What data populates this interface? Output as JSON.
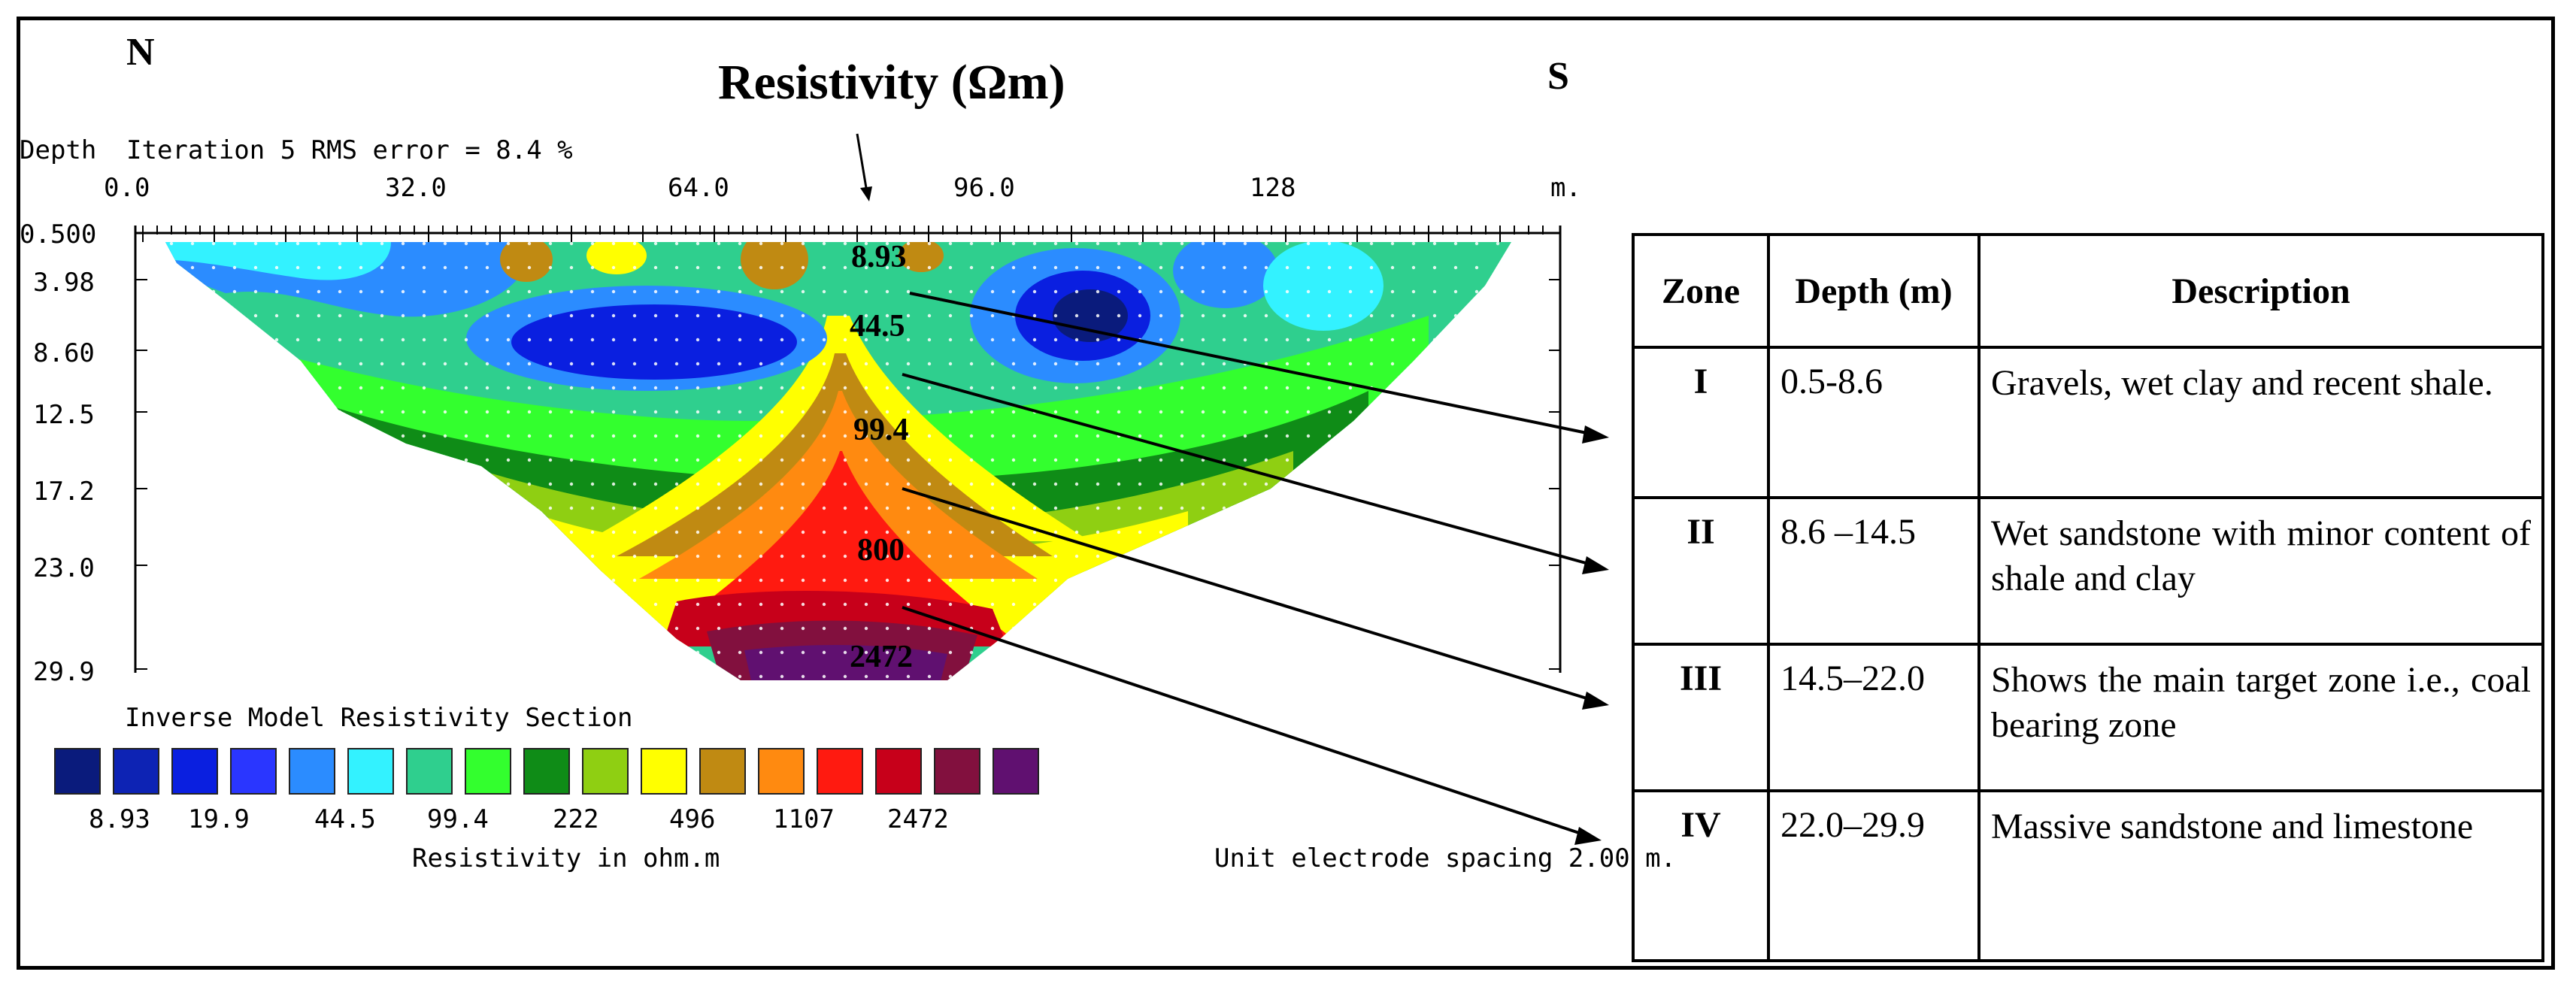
{
  "compass": {
    "north": "N",
    "south": "S"
  },
  "title": "Resistivity (Ωm)",
  "header": {
    "depth_label": "Depth",
    "iteration_text": "Iteration 5 RMS error = 8.4 %"
  },
  "x_axis": {
    "ticks": [
      "0.0",
      "32.0",
      "64.0",
      "96.0",
      "128"
    ],
    "unit": "m."
  },
  "depth_axis": {
    "ticks": [
      "0.500",
      "3.98",
      "8.60",
      "12.5",
      "17.2",
      "23.0",
      "29.9"
    ]
  },
  "section_labels": [
    "8.93",
    "44.5",
    "99.4",
    "800",
    "2472"
  ],
  "legend": {
    "title": "Inverse Model Resistivity Section",
    "colors": [
      "#0a1b7c",
      "#0d23b4",
      "#0a1fe0",
      "#2a36ff",
      "#2b8cff",
      "#33f2ff",
      "#2fcf8e",
      "#33ff2e",
      "#0f8c17",
      "#8fcf12",
      "#ffff00",
      "#c08a12",
      "#ff8a10",
      "#ff1a10",
      "#c7001a",
      "#82103e",
      "#601070"
    ],
    "values": [
      "8.93",
      "19.9",
      "44.5",
      "99.4",
      "222",
      "496",
      "1107",
      "2472"
    ],
    "unit_label": "Resistivity in ohm.m"
  },
  "spacing_note": "Unit electrode spacing 2.00 m.",
  "table": {
    "headers": [
      "Zone",
      "Depth (m)",
      "Description"
    ],
    "rows": [
      {
        "zone": "I",
        "depth": "0.5-8.6",
        "description": "Gravels, wet clay and recent shale."
      },
      {
        "zone": "II",
        "depth": "8.6 –14.5",
        "description": "Wet sandstone with minor content of shale and clay"
      },
      {
        "zone": "III",
        "depth": "14.5–22.0",
        "description": "Shows the main target zone i.e., coal bearing zone"
      },
      {
        "zone": "IV",
        "depth": "22.0–29.9",
        "description": "Massive sandstone and limestone"
      }
    ]
  }
}
